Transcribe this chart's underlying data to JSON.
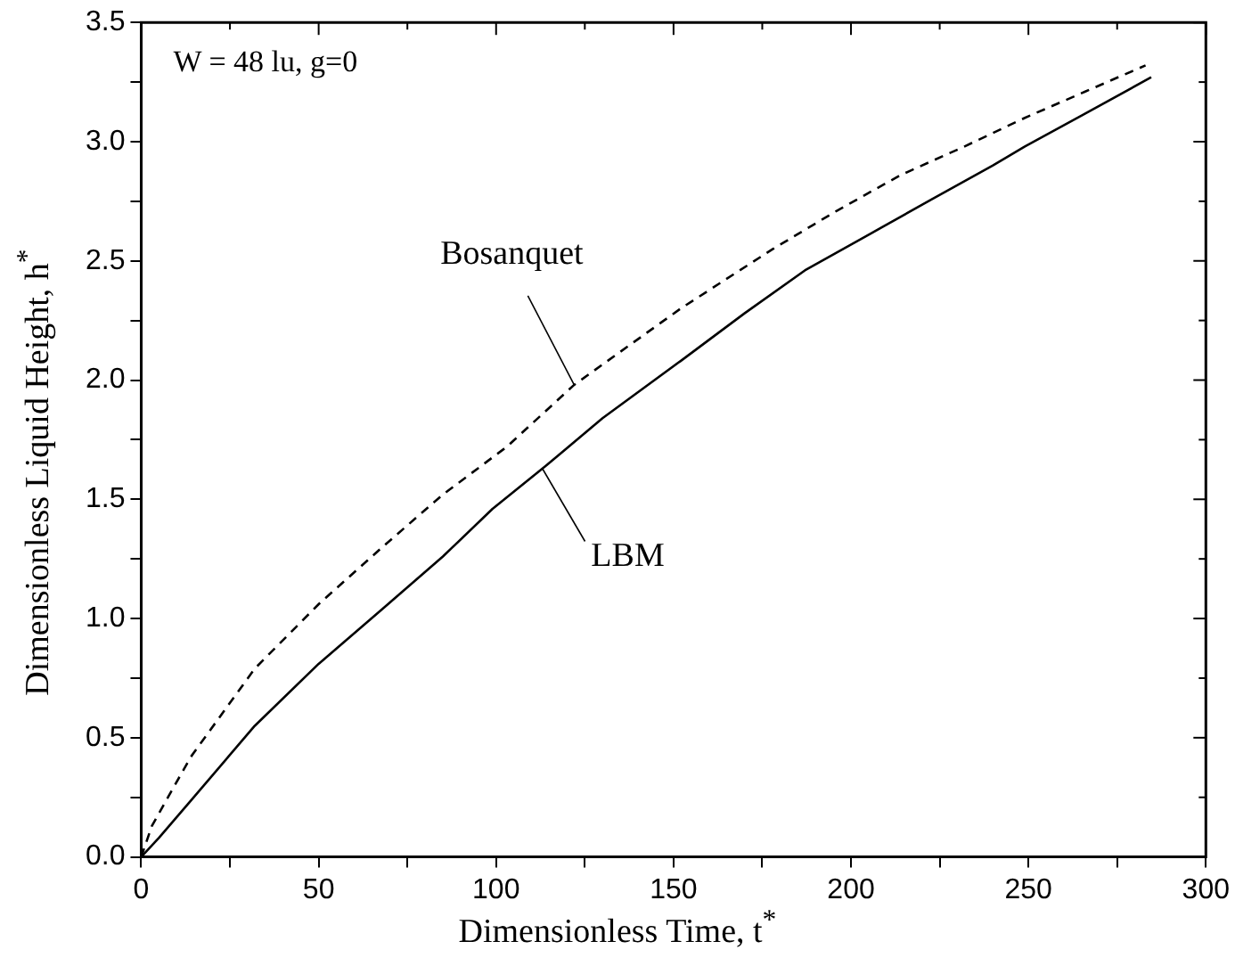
{
  "chart_data": {
    "type": "line",
    "xlabel": "Dimensionless Time, t$^{*}$",
    "ylabel": "Dimensionless Liquid Height, h$^{*}$",
    "xlim": [
      0,
      300
    ],
    "ylim": [
      0,
      3.5
    ],
    "xticks": [
      0,
      {
        "value": 25,
        "label": null
      },
      50,
      {
        "value": 75,
        "label": null
      },
      100,
      {
        "value": 125,
        "label": null
      },
      150,
      {
        "value": 175,
        "label": null
      },
      200,
      {
        "value": 225,
        "label": null
      },
      250,
      {
        "value": 275,
        "label": null
      },
      300
    ],
    "yticks": [
      {
        "value": 0,
        "label": "0.0"
      },
      {
        "value": 0.25,
        "label": null
      },
      {
        "value": 0.5,
        "label": "0.5"
      },
      {
        "value": 0.75,
        "label": null
      },
      {
        "value": 1,
        "label": "1.0"
      },
      {
        "value": 1.25,
        "label": null
      },
      {
        "value": 1.5,
        "label": "1.5"
      },
      {
        "value": 1.75,
        "label": null
      },
      {
        "value": 2,
        "label": "2.0"
      },
      {
        "value": 2.25,
        "label": null
      },
      {
        "value": 2.5,
        "label": "2.5"
      },
      {
        "value": 2.75,
        "label": null
      },
      {
        "value": 3,
        "label": "3.0"
      },
      {
        "value": 3.25,
        "label": null
      },
      {
        "value": 3.5,
        "label": "3.5"
      }
    ],
    "grid": false,
    "legend": false,
    "marker": "none",
    "series": [
      {
        "color": "#000000",
        "line_style": "solid",
        "x": [
          0,
          5,
          14,
          32,
          50,
          68,
          85,
          99,
          114,
          130,
          152,
          170,
          187,
          205,
          223,
          240,
          249,
          265,
          284.6
        ],
        "values": [
          0,
          0.08,
          0.236,
          0.55,
          0.81,
          1.04,
          1.26,
          1.46,
          1.64,
          1.84,
          2.08,
          2.28,
          2.46,
          2.61,
          2.76,
          2.9,
          2.98,
          3.11,
          3.27
        ]
      },
      {
        "color": "#000000",
        "line_style": "dashed",
        "x": [
          0,
          3,
          7,
          14,
          32,
          50,
          68,
          85,
          103,
          122,
          152,
          178,
          196,
          214,
          232,
          249,
          266,
          283
        ],
        "values": [
          0,
          0.13,
          0.236,
          0.42,
          0.79,
          1.06,
          1.3,
          1.52,
          1.72,
          1.98,
          2.3,
          2.55,
          2.71,
          2.86,
          2.98,
          3.1,
          3.21,
          3.32
        ]
      }
    ],
    "annotations": [
      "W = 48 lu, g=0",
      {
        "text": "Bosanquet",
        "x": 122,
        "y": 1.98
      },
      {
        "text": "LBM",
        "x": 113,
        "y": 1.63
      }
    ]
  }
}
